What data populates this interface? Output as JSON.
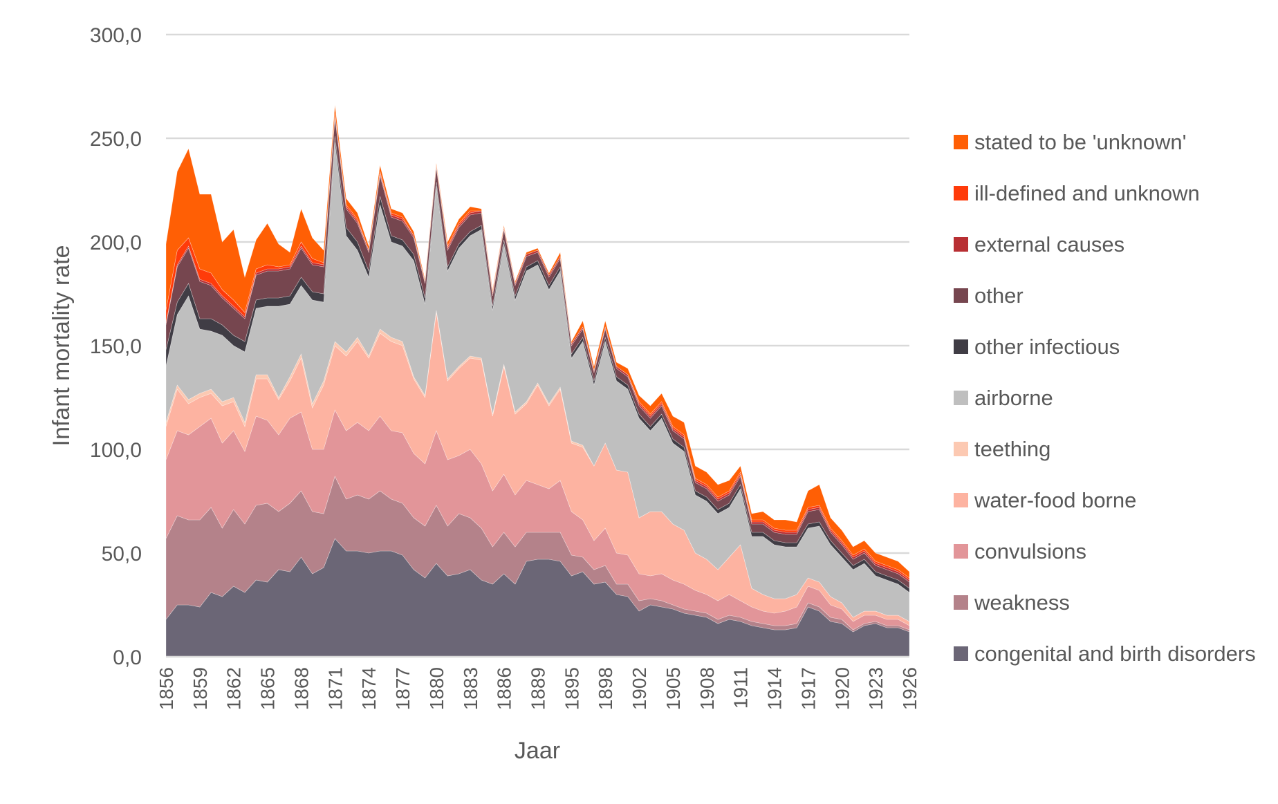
{
  "chart_data": {
    "type": "area",
    "stacked": true,
    "title": "",
    "xlabel": "Jaar",
    "ylabel": "Infant mortality rate",
    "ylim": [
      0,
      300
    ],
    "yticks": [
      "0,0",
      "50,0",
      "100,0",
      "150,0",
      "200,0",
      "250,0",
      "300,0"
    ],
    "ytick_values": [
      0,
      50,
      100,
      150,
      200,
      250,
      300
    ],
    "grid": true,
    "legend_position": "right",
    "x_label_every": 3,
    "categories": [
      1856,
      1857,
      1858,
      1859,
      1860,
      1861,
      1862,
      1863,
      1864,
      1865,
      1866,
      1867,
      1868,
      1869,
      1870,
      1871,
      1872,
      1873,
      1874,
      1875,
      1876,
      1877,
      1878,
      1879,
      1880,
      1881,
      1882,
      1883,
      1884,
      1885,
      1886,
      1887,
      1888,
      1889,
      1892,
      1894,
      1895,
      1896,
      1897,
      1898,
      1900,
      1901,
      1902,
      1903,
      1904,
      1905,
      1906,
      1907,
      1908,
      1909,
      1910,
      1911,
      1912,
      1913,
      1914,
      1915,
      1916,
      1917,
      1918,
      1919,
      1920,
      1921,
      1922,
      1923,
      1924,
      1925,
      1926
    ],
    "series": [
      {
        "name": "congenital and birth disorders",
        "color": "#6b6676",
        "values": [
          18,
          25,
          25,
          24,
          31,
          29,
          34,
          31,
          37,
          36,
          42,
          41,
          48,
          40,
          43,
          57,
          51,
          51,
          50,
          51,
          51,
          49,
          42,
          38,
          45,
          39,
          40,
          42,
          37,
          35,
          40,
          35,
          46,
          47,
          47,
          46,
          39,
          41,
          35,
          36,
          30,
          29,
          22,
          25,
          24,
          23,
          21,
          20,
          19,
          16,
          18,
          17,
          15,
          14,
          13,
          13,
          14,
          24,
          22,
          17,
          16,
          12,
          15,
          16,
          14,
          14,
          12
        ]
      },
      {
        "name": "weakness",
        "color": "#b4828a",
        "values": [
          39,
          43,
          41,
          42,
          41,
          33,
          37,
          33,
          36,
          38,
          28,
          33,
          32,
          30,
          26,
          30,
          25,
          27,
          26,
          29,
          25,
          25,
          25,
          25,
          28,
          24,
          29,
          25,
          25,
          18,
          20,
          18,
          14,
          13,
          13,
          14,
          10,
          7,
          7,
          8,
          5,
          6,
          5,
          3,
          3,
          2,
          2,
          2,
          2,
          2,
          2,
          2,
          2,
          2,
          2,
          2,
          2,
          2,
          2,
          2,
          2,
          1,
          1,
          1,
          1,
          1,
          1
        ]
      },
      {
        "name": "convulsions",
        "color": "#e29599",
        "values": [
          38,
          41,
          41,
          45,
          43,
          41,
          38,
          35,
          43,
          40,
          37,
          41,
          38,
          30,
          31,
          32,
          33,
          35,
          33,
          36,
          33,
          34,
          31,
          30,
          36,
          32,
          28,
          33,
          31,
          27,
          28,
          25,
          25,
          23,
          21,
          25,
          21,
          18,
          14,
          18,
          15,
          14,
          13,
          11,
          13,
          12,
          12,
          10,
          9,
          9,
          10,
          8,
          7,
          6,
          6,
          7,
          8,
          8,
          8,
          6,
          5,
          4,
          4,
          3,
          3,
          3,
          2
        ]
      },
      {
        "name": "water-food borne",
        "color": "#fdb3a1",
        "values": [
          16,
          20,
          15,
          14,
          12,
          18,
          14,
          12,
          18,
          20,
          17,
          18,
          26,
          20,
          31,
          31,
          36,
          39,
          35,
          40,
          43,
          42,
          36,
          32,
          57,
          38,
          42,
          44,
          50,
          36,
          52,
          39,
          37,
          48,
          40,
          44,
          33,
          35,
          36,
          41,
          40,
          40,
          27,
          31,
          30,
          27,
          26,
          18,
          17,
          15,
          18,
          27,
          9,
          8,
          7,
          6,
          6,
          4,
          4,
          4,
          3,
          2,
          2,
          2,
          2,
          2,
          2
        ]
      },
      {
        "name": "teething",
        "color": "#fcc9b2",
        "values": [
          2,
          2,
          2,
          2,
          2,
          2,
          2,
          2,
          2,
          2,
          1,
          2,
          2,
          2,
          2,
          2,
          2,
          2,
          1,
          2,
          2,
          2,
          1,
          1,
          1,
          1,
          1,
          1,
          1,
          1,
          1,
          1,
          1,
          1,
          1,
          1,
          1,
          1,
          0,
          0,
          0,
          0,
          0,
          0,
          0,
          0,
          0,
          0,
          0,
          0,
          0,
          0,
          0,
          0,
          0,
          0,
          0,
          0,
          0,
          0,
          0,
          0,
          0,
          0,
          0,
          0,
          0
        ]
      },
      {
        "name": "airborne",
        "color": "#bfbfbf",
        "values": [
          27,
          34,
          50,
          31,
          28,
          32,
          25,
          34,
          32,
          33,
          44,
          35,
          33,
          50,
          38,
          96,
          56,
          42,
          38,
          60,
          46,
          46,
          56,
          44,
          60,
          52,
          57,
          58,
          62,
          50,
          58,
          54,
          63,
          57,
          55,
          56,
          40,
          50,
          39,
          49,
          43,
          40,
          48,
          39,
          45,
          39,
          38,
          28,
          28,
          27,
          24,
          27,
          25,
          28,
          26,
          25,
          23,
          24,
          27,
          25,
          22,
          23,
          23,
          17,
          17,
          15,
          14
        ]
      },
      {
        "name": "other infectious",
        "color": "#403d45",
        "values": [
          8,
          6,
          6,
          5,
          6,
          5,
          5,
          5,
          4,
          4,
          4,
          4,
          4,
          4,
          4,
          3,
          4,
          4,
          3,
          4,
          3,
          3,
          3,
          3,
          2,
          2,
          2,
          2,
          2,
          2,
          2,
          2,
          2,
          2,
          2,
          2,
          2,
          2,
          2,
          2,
          2,
          2,
          2,
          2,
          2,
          2,
          2,
          2,
          2,
          2,
          2,
          2,
          2,
          2,
          2,
          2,
          2,
          2,
          2,
          2,
          2,
          2,
          2,
          2,
          2,
          2,
          2
        ]
      },
      {
        "name": "other",
        "color": "#76464f",
        "values": [
          12,
          17,
          17,
          18,
          16,
          13,
          13,
          11,
          12,
          13,
          13,
          13,
          14,
          13,
          13,
          9,
          9,
          9,
          9,
          10,
          9,
          9,
          8,
          7,
          7,
          8,
          8,
          8,
          6,
          5,
          5,
          5,
          5,
          4,
          4,
          4,
          4,
          4,
          4,
          4,
          4,
          4,
          4,
          4,
          4,
          4,
          4,
          4,
          4,
          4,
          4,
          4,
          4,
          4,
          4,
          4,
          4,
          6,
          6,
          4,
          4,
          3,
          3,
          3,
          3,
          3,
          3
        ]
      },
      {
        "name": "external causes",
        "color": "#b82f33",
        "values": [
          1,
          1,
          1,
          1,
          1,
          1,
          1,
          1,
          1,
          1,
          1,
          1,
          1,
          1,
          1,
          1,
          1,
          1,
          1,
          1,
          1,
          1,
          1,
          1,
          1,
          1,
          1,
          1,
          1,
          1,
          1,
          1,
          1,
          1,
          1,
          1,
          1,
          1,
          1,
          1,
          1,
          1,
          1,
          1,
          1,
          1,
          1,
          1,
          1,
          1,
          1,
          1,
          1,
          1,
          1,
          1,
          1,
          1,
          1,
          1,
          1,
          1,
          1,
          1,
          1,
          1,
          1
        ]
      },
      {
        "name": "ill-defined and unknown",
        "color": "#ff3b0a",
        "values": [
          6,
          7,
          4,
          5,
          5,
          3,
          3,
          2,
          2,
          2,
          1,
          1,
          2,
          2,
          1,
          1,
          1,
          1,
          0,
          1,
          1,
          1,
          0,
          0,
          0,
          1,
          1,
          1,
          0,
          1,
          0,
          0,
          0,
          0,
          0,
          0,
          0,
          0,
          0,
          0,
          0,
          0,
          1,
          1,
          1,
          1,
          1,
          1,
          1,
          1,
          1,
          1,
          1,
          1,
          1,
          1,
          1,
          1,
          1,
          1,
          1,
          1,
          1,
          1,
          1,
          1,
          1
        ]
      },
      {
        "name": "stated to be 'unknown'",
        "color": "#ff5f05",
        "values": [
          32,
          38,
          43,
          36,
          38,
          23,
          34,
          17,
          14,
          20,
          11,
          6,
          16,
          10,
          6,
          4,
          3,
          3,
          2,
          3,
          2,
          2,
          2,
          1,
          1,
          2,
          2,
          2,
          1,
          1,
          1,
          1,
          1,
          1,
          1,
          2,
          1,
          3,
          2,
          3,
          2,
          3,
          3,
          4,
          4,
          5,
          6,
          6,
          6,
          6,
          5,
          3,
          3,
          4,
          4,
          5,
          4,
          8,
          10,
          5,
          5,
          4,
          4,
          4,
          4,
          4,
          3
        ]
      }
    ]
  }
}
